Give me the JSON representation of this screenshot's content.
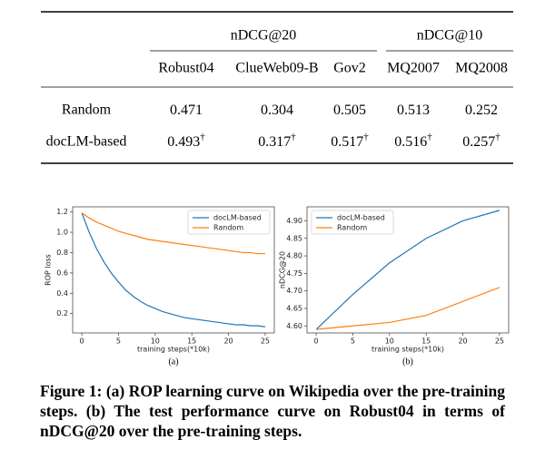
{
  "table": {
    "groups": [
      "nDCG@20",
      "nDCG@10"
    ],
    "columns": [
      "Robust04",
      "ClueWeb09-B",
      "Gov2",
      "MQ2007",
      "MQ2008"
    ],
    "rows": [
      {
        "label": "Random",
        "cells": [
          {
            "text": "0.471"
          },
          {
            "text": "0.304"
          },
          {
            "text": "0.505"
          },
          {
            "text": "0.513"
          },
          {
            "text": "0.252"
          }
        ]
      },
      {
        "label": "docLM-based",
        "cells": [
          {
            "text": "0.493",
            "mark": "†"
          },
          {
            "text": "0.317",
            "mark": "†"
          },
          {
            "text": "0.517",
            "mark": "†"
          },
          {
            "text": "0.516",
            "mark": "†"
          },
          {
            "text": "0.257",
            "mark": "†"
          }
        ]
      }
    ]
  },
  "chart_data": [
    {
      "type": "line",
      "sublabel": "(a)",
      "xlabel": "training steps(*10k)",
      "ylabel": "ROP loss",
      "legend": "upper right",
      "x": [
        0,
        1,
        2,
        3,
        4,
        5,
        6,
        7,
        8,
        9,
        10,
        11,
        12,
        13,
        14,
        15,
        16,
        17,
        18,
        19,
        20,
        21,
        22,
        23,
        24,
        25
      ],
      "xlim": [
        -1.25,
        26.25
      ],
      "xticks": [
        0,
        5,
        10,
        15,
        20,
        25
      ],
      "ylim": [
        0.01,
        1.25
      ],
      "yticks": [
        0.2,
        0.4,
        0.6,
        0.8,
        {
          "value": 1,
          "label": "1.0"
        },
        1.2
      ],
      "series": [
        {
          "name": "docLM-based",
          "color": "#1f77b4",
          "values": [
            1.19,
            1.0,
            0.84,
            0.71,
            0.6,
            0.51,
            0.43,
            0.37,
            0.32,
            0.28,
            0.25,
            0.22,
            0.2,
            0.18,
            0.16,
            0.15,
            0.14,
            0.13,
            0.12,
            0.11,
            0.1,
            0.09,
            0.09,
            0.08,
            0.08,
            0.07
          ]
        },
        {
          "name": "Random",
          "color": "#ff7f0e",
          "values": [
            1.19,
            1.14,
            1.1,
            1.07,
            1.04,
            1.01,
            0.99,
            0.97,
            0.95,
            0.93,
            0.92,
            0.91,
            0.9,
            0.89,
            0.88,
            0.87,
            0.86,
            0.85,
            0.84,
            0.83,
            0.82,
            0.81,
            0.8,
            0.8,
            0.79,
            0.79
          ]
        }
      ]
    },
    {
      "type": "line",
      "sublabel": "(b)",
      "xlabel": "training steps(*10k)",
      "ylabel": "nDCG@20",
      "legend": "upper left",
      "x": [
        0,
        5,
        10,
        15,
        20,
        25
      ],
      "xlim": [
        -1.25,
        26.25
      ],
      "xticks": [
        0,
        5,
        10,
        15,
        20,
        25
      ],
      "ylim": [
        4.58,
        4.94
      ],
      "yticks": [
        {
          "value": 4.6,
          "label": "4.60"
        },
        4.65,
        {
          "value": 4.7,
          "label": "4.70"
        },
        4.75,
        {
          "value": 4.8,
          "label": "4.80"
        },
        4.85,
        {
          "value": 4.9,
          "label": "4.90"
        }
      ],
      "series": [
        {
          "name": "docLM-based",
          "color": "#1f77b4",
          "values": [
            4.59,
            4.69,
            4.78,
            4.85,
            4.9,
            4.93
          ]
        },
        {
          "name": "Random",
          "color": "#ff7f0e",
          "values": [
            4.59,
            4.6,
            4.61,
            4.63,
            4.67,
            4.71
          ]
        }
      ]
    }
  ],
  "caption": "Figure 1: (a) ROP learning curve on Wikipedia over the pre-training steps. (b) The test performance curve on Robust04 in terms of nDCG@20 over the pre-training steps."
}
